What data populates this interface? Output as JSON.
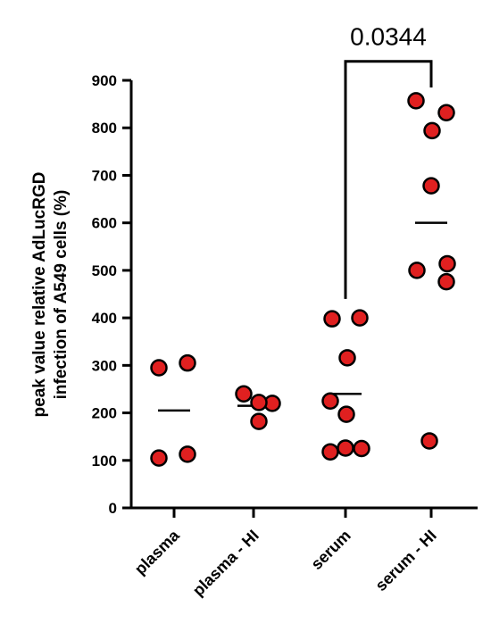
{
  "chart_data": {
    "type": "scatter",
    "title": "",
    "xlabel": "",
    "ylabel_line1": "peak value relative AdLucRGD",
    "ylabel_line2": "infection of A549 cells (%)",
    "ylim": [
      0,
      900
    ],
    "yticks": [
      0,
      100,
      200,
      300,
      400,
      500,
      600,
      700,
      800,
      900
    ],
    "grid": false,
    "legend": "none",
    "point_color": "#e02020",
    "categories": [
      "plasma",
      "plasma - HI",
      "serum",
      "serum - HI"
    ],
    "groups": [
      {
        "category": "plasma",
        "points": [
          295,
          305,
          105,
          113
        ],
        "mean": 205
      },
      {
        "category": "plasma - HI",
        "points": [
          240,
          220,
          222,
          182
        ],
        "mean": 215
      },
      {
        "category": "serum",
        "points": [
          398,
          400,
          316,
          225,
          197,
          118,
          126,
          125
        ],
        "mean": 240
      },
      {
        "category": "serum - HI",
        "points": [
          857,
          832,
          794,
          678,
          500,
          514,
          476,
          141
        ],
        "mean": 600
      }
    ],
    "annotation": {
      "text": "0.0344",
      "from_category": "serum",
      "to_category": "serum - HI",
      "bracket_top": 940,
      "left_end": 440,
      "right_end": 885
    }
  }
}
